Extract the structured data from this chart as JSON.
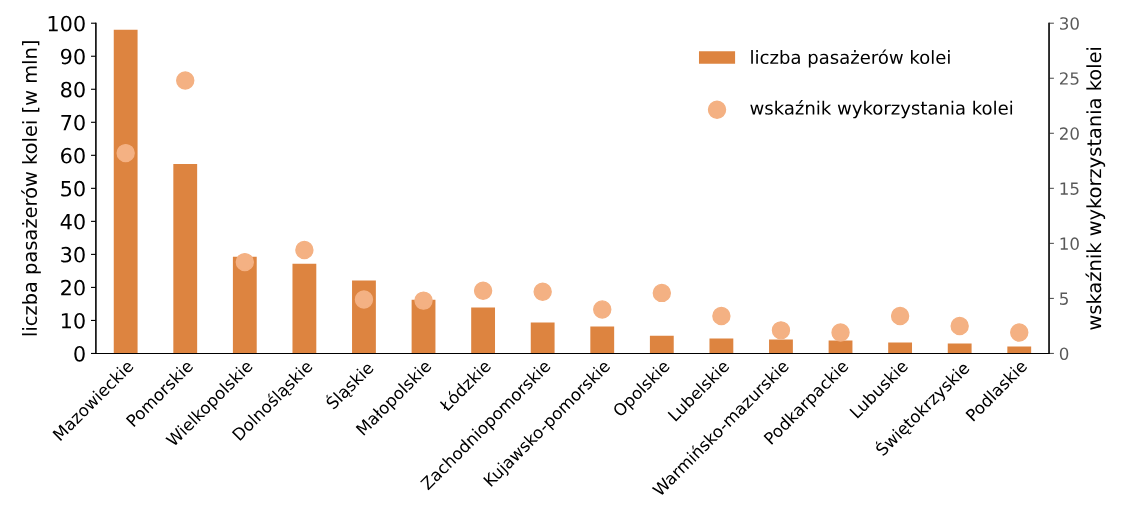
{
  "chart_data": {
    "type": "bar",
    "categories": [
      "Mazowieckie",
      "Pomorskie",
      "Wielkopolskie",
      "Dolnośląskie",
      "Śląskie",
      "Małopolskie",
      "Łódzkie",
      "Zachodniopomorskie",
      "Kujawsko-pomorskie",
      "Opolskie",
      "Lubelskie",
      "Warmińsko-mazurskie",
      "Podkarpackie",
      "Lubuskie",
      "Świętokrzyskie",
      "Podlaskie"
    ],
    "ylabel": "liczba pasażerów kolei [w mln]",
    "y2label": "wskaźnik wykorzystania kolei",
    "ylim": [
      0,
      100
    ],
    "yticks": [
      0,
      10,
      20,
      30,
      40,
      50,
      60,
      70,
      80,
      90,
      100
    ],
    "y2lim": [
      0,
      30
    ],
    "y2ticks": [
      0,
      5,
      10,
      15,
      20,
      25,
      30
    ],
    "series": [
      {
        "name": "liczba pasażerów kolei",
        "color": "#dd8440",
        "values": [
          98,
          57.4,
          29.3,
          27.2,
          22.1,
          16.3,
          13.9,
          9.4,
          8.2,
          5.4,
          4.5,
          4.2,
          3.9,
          3.3,
          3.0,
          2.1
        ]
      },
      {
        "name": "wskaźnik wykorzystania kolei",
        "type": "scatter",
        "axis": "y2",
        "color": "#f4b183",
        "marker": "circle",
        "values": [
          18.2,
          24.8,
          8.3,
          9.4,
          4.9,
          4.8,
          5.7,
          5.6,
          4.0,
          5.5,
          3.4,
          2.1,
          1.9,
          3.4,
          2.5,
          1.9
        ]
      }
    ],
    "legend": "top right",
    "grid": false
  }
}
